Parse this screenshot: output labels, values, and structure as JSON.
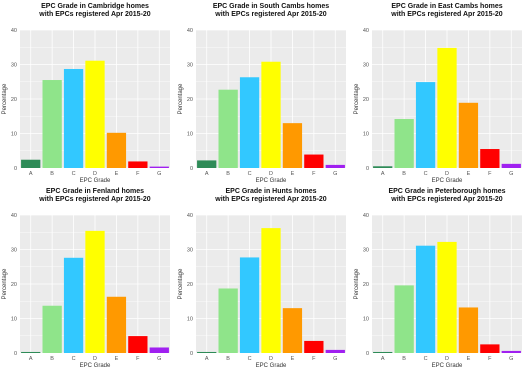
{
  "chart_data": [
    {
      "type": "bar",
      "title_lines": [
        "EPC Grade in Cambridge homes",
        "with EPCs registered Apr 2015-20"
      ],
      "xlabel": "EPC Grade",
      "ylabel": "Percentage",
      "categories": [
        "A",
        "B",
        "C",
        "D",
        "E",
        "F",
        "G"
      ],
      "values": [
        2.4,
        25.5,
        28.7,
        31.1,
        10.2,
        1.9,
        0.4
      ],
      "ylim": [
        0,
        40
      ],
      "yticks": [
        0,
        10,
        20,
        30,
        40
      ],
      "grid": true
    },
    {
      "type": "bar",
      "title_lines": [
        "EPC Grade in South Cambs homes",
        "with EPCs registered Apr 2015-20"
      ],
      "xlabel": "EPC Grade",
      "ylabel": "Percentage",
      "categories": [
        "A",
        "B",
        "C",
        "D",
        "E",
        "F",
        "G"
      ],
      "values": [
        2.2,
        22.7,
        26.3,
        30.8,
        13.0,
        3.9,
        0.9
      ],
      "ylim": [
        0,
        40
      ],
      "yticks": [
        0,
        10,
        20,
        30,
        40
      ],
      "grid": true
    },
    {
      "type": "bar",
      "title_lines": [
        "EPC Grade in East Cambs homes",
        "with EPCs registered Apr 2015-20"
      ],
      "xlabel": "EPC Grade",
      "ylabel": "Percentage",
      "categories": [
        "A",
        "B",
        "C",
        "D",
        "E",
        "F",
        "G"
      ],
      "values": [
        0.5,
        14.2,
        24.9,
        34.8,
        18.9,
        5.5,
        1.2
      ],
      "ylim": [
        0,
        40
      ],
      "yticks": [
        0,
        10,
        20,
        30,
        40
      ],
      "grid": true
    },
    {
      "type": "bar",
      "title_lines": [
        "EPC Grade in Fenland homes",
        "with EPCs registered Apr 2015-20"
      ],
      "xlabel": "EPC Grade",
      "ylabel": "Percentage",
      "categories": [
        "A",
        "B",
        "C",
        "D",
        "E",
        "F",
        "G"
      ],
      "values": [
        0.3,
        13.7,
        27.6,
        35.4,
        16.3,
        4.9,
        1.6
      ],
      "ylim": [
        0,
        40
      ],
      "yticks": [
        0,
        10,
        20,
        30,
        40
      ],
      "grid": true
    },
    {
      "type": "bar",
      "title_lines": [
        "EPC Grade in Hunts homes",
        "with EPCs registered Apr 2015-20"
      ],
      "xlabel": "EPC Grade",
      "ylabel": "Percentage",
      "categories": [
        "A",
        "B",
        "C",
        "D",
        "E",
        "F",
        "G"
      ],
      "values": [
        0.3,
        18.7,
        27.7,
        36.2,
        13.0,
        3.5,
        0.9
      ],
      "ylim": [
        0,
        40
      ],
      "yticks": [
        0,
        10,
        20,
        30,
        40
      ],
      "grid": true
    },
    {
      "type": "bar",
      "title_lines": [
        "EPC Grade in Peterborough homes",
        "with EPCs registered Apr 2015-20"
      ],
      "xlabel": "EPC Grade",
      "ylabel": "Percentage",
      "categories": [
        "A",
        "B",
        "C",
        "D",
        "E",
        "F",
        "G"
      ],
      "values": [
        0.3,
        19.6,
        31.1,
        32.2,
        13.2,
        2.5,
        0.6
      ],
      "ylim": [
        0,
        40
      ],
      "yticks": [
        0,
        10,
        20,
        30,
        40
      ],
      "grid": true
    }
  ],
  "colors": {
    "A": "#2e8b57",
    "B": "#8fe48a",
    "C": "#32c8ff",
    "D": "#ffff00",
    "E": "#ff9900",
    "F": "#ff0000",
    "G": "#a020f0",
    "panel_bg": "#ebebeb",
    "grid": "#ffffff"
  }
}
